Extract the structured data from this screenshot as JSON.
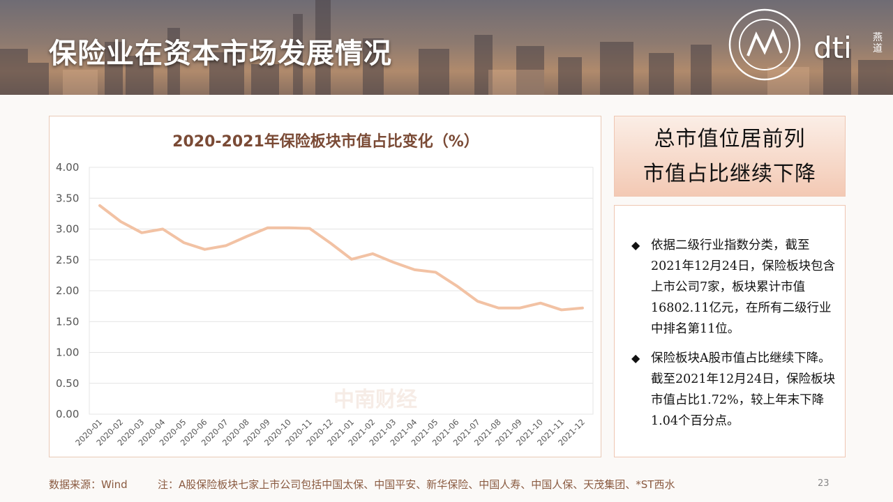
{
  "header": {
    "title": "保险业在资本市场发展情况",
    "logo_text": "dti",
    "logo_side": "燕道"
  },
  "chart_data": {
    "type": "line",
    "title": "2020-2021年保险板块市值占比变化（%）",
    "categories": [
      "2020-01",
      "2020-02",
      "2020-03",
      "2020-04",
      "2020-05",
      "2020-06",
      "2020-07",
      "2020-08",
      "2020-09",
      "2020-10",
      "2020-11",
      "2020-12",
      "2021-01",
      "2021-02",
      "2021-03",
      "2021-04",
      "2021-05",
      "2021-06",
      "2021-07",
      "2021-08",
      "2021-09",
      "2021-10",
      "2021-11",
      "2021-12"
    ],
    "series": [
      {
        "values": [
          3.38,
          3.12,
          2.94,
          3.0,
          2.78,
          2.67,
          2.73,
          2.88,
          3.02,
          3.02,
          3.01,
          2.77,
          2.51,
          2.6,
          2.46,
          2.34,
          2.3,
          2.08,
          1.83,
          1.72,
          1.72,
          1.8,
          1.69,
          1.72
        ]
      }
    ],
    "ylim": [
      0,
      4
    ],
    "yticks": [
      "0.00",
      "0.50",
      "1.00",
      "1.50",
      "2.00",
      "2.50",
      "3.00",
      "3.50",
      "4.00"
    ],
    "grid": true,
    "line_color": "#f2c2a4"
  },
  "watermark": "中南财经",
  "highlight": {
    "line1": "总市值位居前列",
    "line2": "市值占比继续下降"
  },
  "bullets": [
    {
      "mark": "◆",
      "text": "依据二级行业指数分类，截至2021年12月24日，保险板块包含上市公司7家，板块累计市值16802.11亿元，在所有二级行业中排名第11位。"
    },
    {
      "mark": "◆",
      "text": "保险板块A股市值占比继续下降。截至2021年12月24日，保险板块市值占比1.72%，较上年末下降1.04个百分点。"
    }
  ],
  "footer": {
    "source": "数据来源：Wind",
    "note": "注：A股保险板块七家上市公司包括中国太保、中国平安、新华保险、中国人寿、中国人保、天茂集团、*ST西水",
    "page": "23"
  }
}
